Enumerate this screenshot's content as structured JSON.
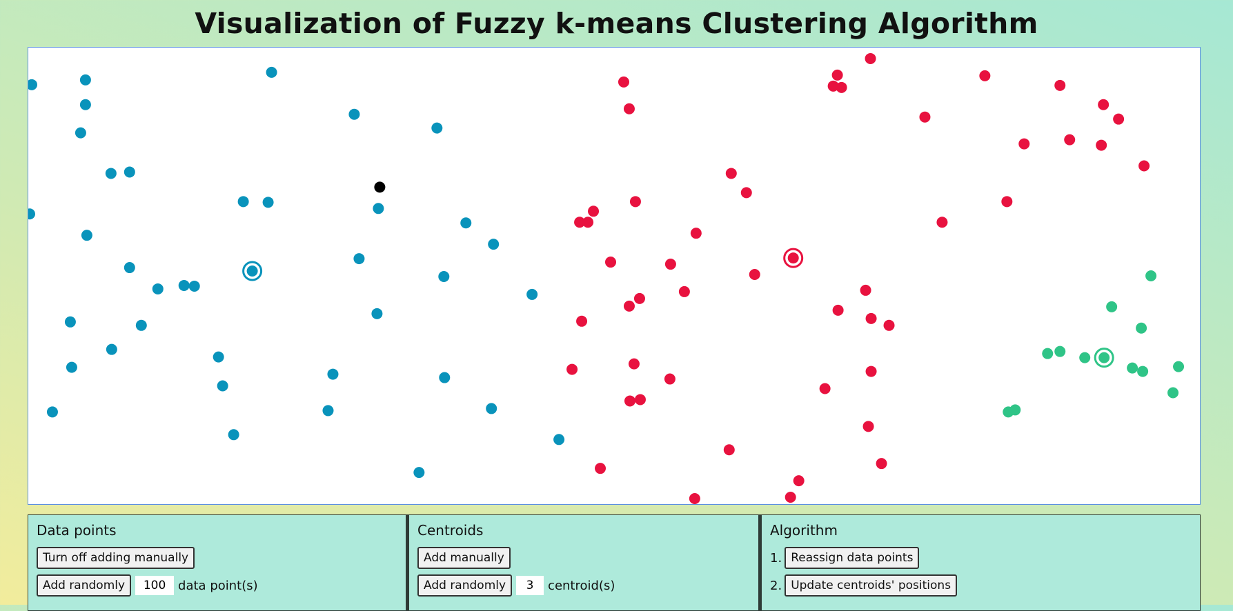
{
  "title": "Visualization of Fuzzy k-means Clustering Algorithm",
  "colors": {
    "blue": "#0993bb",
    "red": "#e8123f",
    "green": "#2fc487",
    "black": "#000000"
  },
  "chart_data": {
    "type": "scatter",
    "xlim": [
      0,
      1700
    ],
    "ylim": [
      0,
      664
    ],
    "points": [
      {
        "c": "blue",
        "x": 5,
        "y": 54
      },
      {
        "c": "blue",
        "x": 83,
        "y": 83
      },
      {
        "c": "blue",
        "x": 83,
        "y": 47
      },
      {
        "c": "blue",
        "x": 76,
        "y": 124
      },
      {
        "c": "blue",
        "x": 120,
        "y": 183
      },
      {
        "c": "blue",
        "x": 147,
        "y": 181
      },
      {
        "c": "blue",
        "x": 2,
        "y": 242
      },
      {
        "c": "blue",
        "x": 85,
        "y": 273
      },
      {
        "c": "blue",
        "x": 147,
        "y": 320
      },
      {
        "c": "blue",
        "x": 188,
        "y": 351
      },
      {
        "c": "blue",
        "x": 226,
        "y": 346
      },
      {
        "c": "blue",
        "x": 241,
        "y": 347
      },
      {
        "c": "blue",
        "x": 61,
        "y": 399
      },
      {
        "c": "blue",
        "x": 164,
        "y": 404
      },
      {
        "c": "blue",
        "x": 121,
        "y": 439
      },
      {
        "c": "blue",
        "x": 63,
        "y": 465
      },
      {
        "c": "blue",
        "x": 35,
        "y": 530
      },
      {
        "c": "blue",
        "x": 276,
        "y": 450
      },
      {
        "c": "blue",
        "x": 282,
        "y": 492
      },
      {
        "c": "blue",
        "x": 298,
        "y": 563
      },
      {
        "c": "blue",
        "x": 312,
        "y": 224
      },
      {
        "c": "blue",
        "x": 348,
        "y": 225
      },
      {
        "c": "blue",
        "x": 353,
        "y": 36
      },
      {
        "c": "blue",
        "x": 473,
        "y": 97
      },
      {
        "c": "blue",
        "x": 508,
        "y": 234
      },
      {
        "c": "blue",
        "x": 480,
        "y": 307
      },
      {
        "c": "blue",
        "x": 506,
        "y": 387
      },
      {
        "c": "blue",
        "x": 442,
        "y": 475
      },
      {
        "c": "blue",
        "x": 435,
        "y": 528
      },
      {
        "c": "blue",
        "x": 593,
        "y": 117
      },
      {
        "c": "blue",
        "x": 635,
        "y": 255
      },
      {
        "c": "blue",
        "x": 675,
        "y": 286
      },
      {
        "c": "blue",
        "x": 603,
        "y": 333
      },
      {
        "c": "blue",
        "x": 604,
        "y": 480
      },
      {
        "c": "blue",
        "x": 672,
        "y": 525
      },
      {
        "c": "blue",
        "x": 731,
        "y": 359
      },
      {
        "c": "blue",
        "x": 770,
        "y": 570
      },
      {
        "c": "blue",
        "x": 567,
        "y": 618
      },
      {
        "c": "red",
        "x": 864,
        "y": 50
      },
      {
        "c": "red",
        "x": 872,
        "y": 89
      },
      {
        "c": "red",
        "x": 1174,
        "y": 40
      },
      {
        "c": "red",
        "x": 1168,
        "y": 56
      },
      {
        "c": "red",
        "x": 1180,
        "y": 58
      },
      {
        "c": "red",
        "x": 1222,
        "y": 16
      },
      {
        "c": "red",
        "x": 1301,
        "y": 101
      },
      {
        "c": "red",
        "x": 1388,
        "y": 41
      },
      {
        "c": "red",
        "x": 1497,
        "y": 55
      },
      {
        "c": "red",
        "x": 1560,
        "y": 83
      },
      {
        "c": "red",
        "x": 1582,
        "y": 104
      },
      {
        "c": "red",
        "x": 1445,
        "y": 140
      },
      {
        "c": "red",
        "x": 1511,
        "y": 134
      },
      {
        "c": "red",
        "x": 1557,
        "y": 142
      },
      {
        "c": "red",
        "x": 1619,
        "y": 172
      },
      {
        "c": "red",
        "x": 1020,
        "y": 183
      },
      {
        "c": "red",
        "x": 1042,
        "y": 211
      },
      {
        "c": "red",
        "x": 881,
        "y": 224
      },
      {
        "c": "red",
        "x": 820,
        "y": 238
      },
      {
        "c": "red",
        "x": 800,
        "y": 254
      },
      {
        "c": "red",
        "x": 812,
        "y": 254
      },
      {
        "c": "red",
        "x": 969,
        "y": 270
      },
      {
        "c": "red",
        "x": 1326,
        "y": 254
      },
      {
        "c": "red",
        "x": 1420,
        "y": 224
      },
      {
        "c": "red",
        "x": 845,
        "y": 312
      },
      {
        "c": "red",
        "x": 932,
        "y": 315
      },
      {
        "c": "red",
        "x": 952,
        "y": 355
      },
      {
        "c": "red",
        "x": 1054,
        "y": 330
      },
      {
        "c": "red",
        "x": 887,
        "y": 365
      },
      {
        "c": "red",
        "x": 872,
        "y": 376
      },
      {
        "c": "red",
        "x": 803,
        "y": 398
      },
      {
        "c": "red",
        "x": 1215,
        "y": 353
      },
      {
        "c": "red",
        "x": 1175,
        "y": 382
      },
      {
        "c": "red",
        "x": 1223,
        "y": 394
      },
      {
        "c": "red",
        "x": 1249,
        "y": 404
      },
      {
        "c": "red",
        "x": 789,
        "y": 468
      },
      {
        "c": "red",
        "x": 879,
        "y": 460
      },
      {
        "c": "red",
        "x": 931,
        "y": 482
      },
      {
        "c": "red",
        "x": 873,
        "y": 514
      },
      {
        "c": "red",
        "x": 888,
        "y": 512
      },
      {
        "c": "red",
        "x": 1156,
        "y": 496
      },
      {
        "c": "red",
        "x": 1223,
        "y": 471
      },
      {
        "c": "red",
        "x": 1219,
        "y": 551
      },
      {
        "c": "red",
        "x": 1017,
        "y": 585
      },
      {
        "c": "red",
        "x": 830,
        "y": 612
      },
      {
        "c": "red",
        "x": 1238,
        "y": 605
      },
      {
        "c": "red",
        "x": 1118,
        "y": 630
      },
      {
        "c": "red",
        "x": 1106,
        "y": 654
      },
      {
        "c": "red",
        "x": 967,
        "y": 656
      },
      {
        "c": "green",
        "x": 1629,
        "y": 332
      },
      {
        "c": "green",
        "x": 1572,
        "y": 377
      },
      {
        "c": "green",
        "x": 1615,
        "y": 408
      },
      {
        "c": "green",
        "x": 1479,
        "y": 445
      },
      {
        "c": "green",
        "x": 1497,
        "y": 442
      },
      {
        "c": "green",
        "x": 1533,
        "y": 451
      },
      {
        "c": "green",
        "x": 1602,
        "y": 466
      },
      {
        "c": "green",
        "x": 1617,
        "y": 471
      },
      {
        "c": "green",
        "x": 1669,
        "y": 464
      },
      {
        "c": "green",
        "x": 1661,
        "y": 502
      },
      {
        "c": "green",
        "x": 1432,
        "y": 527
      },
      {
        "c": "green",
        "x": 1422,
        "y": 530
      },
      {
        "c": "black",
        "x": 510,
        "y": 203
      }
    ],
    "centroids": [
      {
        "c": "blue",
        "x": 325,
        "y": 325
      },
      {
        "c": "red",
        "x": 1110,
        "y": 306
      },
      {
        "c": "green",
        "x": 1561,
        "y": 451
      }
    ]
  },
  "panels": {
    "data_points": {
      "heading": "Data points",
      "toggle_manual_label": "Turn off adding manually",
      "add_random_label": "Add randomly",
      "count_value": "100",
      "count_suffix": "data point(s)"
    },
    "centroids": {
      "heading": "Centroids",
      "add_manual_label": "Add manually",
      "add_random_label": "Add randomly",
      "count_value": "3",
      "count_suffix": "centroid(s)"
    },
    "algorithm": {
      "heading": "Algorithm",
      "step1_num": "1.",
      "step1_label": "Reassign data points",
      "step2_num": "2.",
      "step2_label": "Update centroids' positions"
    }
  }
}
